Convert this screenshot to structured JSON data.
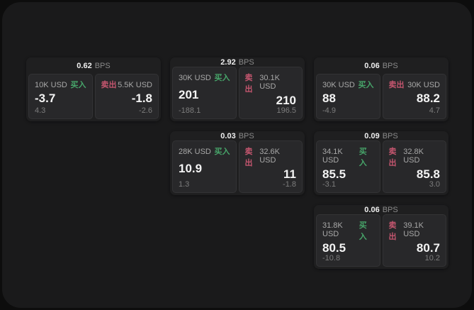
{
  "labels": {
    "buy": "买入",
    "sell": "卖出",
    "bps": "BPS"
  },
  "colors": {
    "buy": "#47a56a",
    "sell": "#c5566f",
    "panel": "#1a1a1b",
    "card": "#1f1f20",
    "cell": "#28282a"
  },
  "cards": [
    {
      "bps": "0.62",
      "buy": {
        "size": "10K USD",
        "value": "-3.7",
        "sub": "4.3"
      },
      "sell": {
        "size": "5.5K USD",
        "value": "-1.8",
        "sub": "-2.6"
      }
    },
    {
      "bps": "2.92",
      "buy": {
        "size": "30K USD",
        "value": "201",
        "sub": "-188.1"
      },
      "sell": {
        "size": "30.1K USD",
        "value": "210",
        "sub": "196.5"
      }
    },
    {
      "bps": "0.06",
      "buy": {
        "size": "30K USD",
        "value": "88",
        "sub": "-4.9"
      },
      "sell": {
        "size": "30K USD",
        "value": "88.2",
        "sub": "4.7"
      }
    },
    {
      "bps": "0.03",
      "buy": {
        "size": "28K USD",
        "value": "10.9",
        "sub": "1.3"
      },
      "sell": {
        "size": "32.6K USD",
        "value": "11",
        "sub": "-1.8"
      }
    },
    {
      "bps": "0.09",
      "buy": {
        "size": "34.1K USD",
        "value": "85.5",
        "sub": "-3.1"
      },
      "sell": {
        "size": "32.8K USD",
        "value": "85.8",
        "sub": "3.0"
      }
    },
    {
      "bps": "0.06",
      "buy": {
        "size": "31.8K USD",
        "value": "80.5",
        "sub": "-10.8"
      },
      "sell": {
        "size": "39.1K USD",
        "value": "80.7",
        "sub": "10.2"
      }
    }
  ]
}
